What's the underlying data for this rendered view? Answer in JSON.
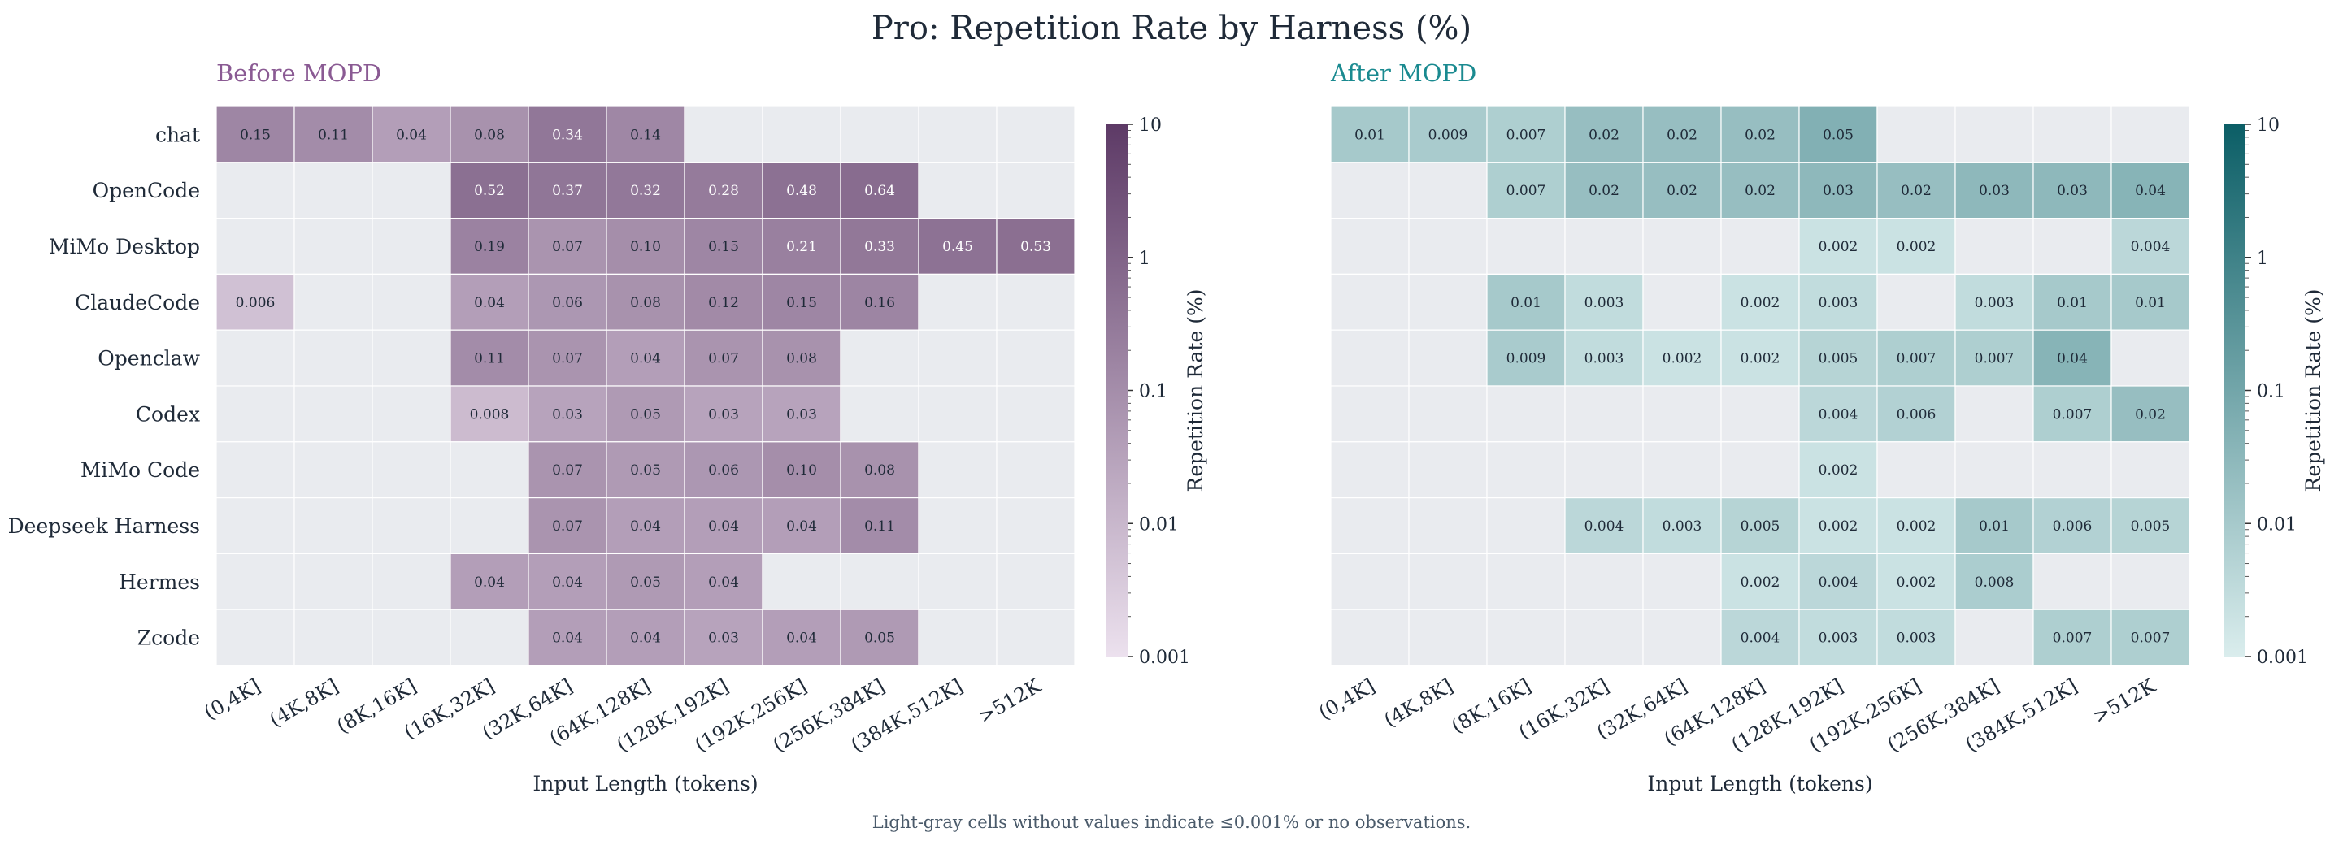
{
  "figure": {
    "title": "Pro: Repetition Rate by Harness (%)",
    "footnote": "Light-gray cells without values indicate ≤0.001% or no observations."
  },
  "colors": {
    "empty_cell": "#e9ebef",
    "before_low": "#ece1ee",
    "before_high": "#5d3a66",
    "after_low": "#daeded",
    "after_high": "#0b5e66",
    "before_title": "#8a5a93",
    "after_title": "#1a8a90",
    "text_dark": "#1f2a38"
  },
  "chart_data": [
    {
      "type": "heatmap",
      "title": "Before MOPD",
      "xlabel": "Input Length (tokens)",
      "ylabel": "",
      "colorbar_label": "Repetition Rate (%)",
      "color_scale": "log",
      "zlim": [
        0.001,
        10
      ],
      "colorbar_ticks": [
        "10",
        "1",
        "0.1",
        "0.01",
        "0.001"
      ],
      "x": [
        "(0,4K]",
        "(4K,8K]",
        "(8K,16K]",
        "(16K,32K]",
        "(32K,64K]",
        "(64K,128K]",
        "(128K,192K]",
        "(192K,256K]",
        "(256K,384K]",
        "(384K,512K]",
        ">512K"
      ],
      "y": [
        "chat",
        "OpenCode",
        "MiMo Desktop",
        "ClaudeCode",
        "Openclaw",
        "Codex",
        "MiMo Code",
        "Deepseek Harness",
        "Hermes",
        "Zcode"
      ],
      "values": [
        [
          "0.15",
          "0.11",
          "0.04",
          "0.08",
          "0.34",
          "0.14",
          null,
          null,
          null,
          null,
          null
        ],
        [
          null,
          null,
          null,
          "0.52",
          "0.37",
          "0.32",
          "0.28",
          "0.48",
          "0.64",
          null,
          null
        ],
        [
          null,
          null,
          null,
          "0.19",
          "0.07",
          "0.10",
          "0.15",
          "0.21",
          "0.33",
          "0.45",
          "0.53"
        ],
        [
          "0.006",
          null,
          null,
          "0.04",
          "0.06",
          "0.08",
          "0.12",
          "0.15",
          "0.16",
          null,
          null
        ],
        [
          null,
          null,
          null,
          "0.11",
          "0.07",
          "0.04",
          "0.07",
          "0.08",
          null,
          null,
          null
        ],
        [
          null,
          null,
          null,
          "0.008",
          "0.03",
          "0.05",
          "0.03",
          "0.03",
          null,
          null,
          null
        ],
        [
          null,
          null,
          null,
          null,
          "0.07",
          "0.05",
          "0.06",
          "0.10",
          "0.08",
          null,
          null
        ],
        [
          null,
          null,
          null,
          null,
          "0.07",
          "0.04",
          "0.04",
          "0.04",
          "0.11",
          null,
          null
        ],
        [
          null,
          null,
          null,
          "0.04",
          "0.04",
          "0.05",
          "0.04",
          null,
          null,
          null,
          null
        ],
        [
          null,
          null,
          null,
          null,
          "0.04",
          "0.04",
          "0.03",
          "0.04",
          "0.05",
          null,
          null
        ]
      ]
    },
    {
      "type": "heatmap",
      "title": "After MOPD",
      "xlabel": "Input Length (tokens)",
      "ylabel": "",
      "colorbar_label": "Repetition Rate (%)",
      "color_scale": "log",
      "zlim": [
        0.001,
        10
      ],
      "colorbar_ticks": [
        "10",
        "1",
        "0.1",
        "0.01",
        "0.001"
      ],
      "x": [
        "(0,4K]",
        "(4K,8K]",
        "(8K,16K]",
        "(16K,32K]",
        "(32K,64K]",
        "(64K,128K]",
        "(128K,192K]",
        "(192K,256K]",
        "(256K,384K]",
        "(384K,512K]",
        ">512K"
      ],
      "y": [
        "chat",
        "OpenCode",
        "MiMo Desktop",
        "ClaudeCode",
        "Openclaw",
        "Codex",
        "MiMo Code",
        "Deepseek Harness",
        "Hermes",
        "Zcode"
      ],
      "values": [
        [
          "0.01",
          "0.009",
          "0.007",
          "0.02",
          "0.02",
          "0.02",
          "0.05",
          null,
          null,
          null,
          null
        ],
        [
          null,
          null,
          "0.007",
          "0.02",
          "0.02",
          "0.02",
          "0.03",
          "0.02",
          "0.03",
          "0.03",
          "0.04"
        ],
        [
          null,
          null,
          null,
          null,
          null,
          null,
          "0.002",
          "0.002",
          null,
          null,
          "0.004"
        ],
        [
          null,
          null,
          "0.01",
          "0.003",
          null,
          "0.002",
          "0.003",
          null,
          "0.003",
          "0.01",
          "0.01"
        ],
        [
          null,
          null,
          "0.009",
          "0.003",
          "0.002",
          "0.002",
          "0.005",
          "0.007",
          "0.007",
          "0.04",
          null
        ],
        [
          null,
          null,
          null,
          null,
          null,
          null,
          "0.004",
          "0.006",
          null,
          "0.007",
          "0.02"
        ],
        [
          null,
          null,
          null,
          null,
          null,
          null,
          "0.002",
          null,
          null,
          null,
          null
        ],
        [
          null,
          null,
          null,
          "0.004",
          "0.003",
          "0.005",
          "0.002",
          "0.002",
          "0.01",
          "0.006",
          "0.005"
        ],
        [
          null,
          null,
          null,
          null,
          null,
          "0.002",
          "0.004",
          "0.002",
          "0.008",
          null,
          null
        ],
        [
          null,
          null,
          null,
          null,
          null,
          "0.004",
          "0.003",
          "0.003",
          null,
          "0.007",
          "0.007"
        ]
      ]
    }
  ]
}
